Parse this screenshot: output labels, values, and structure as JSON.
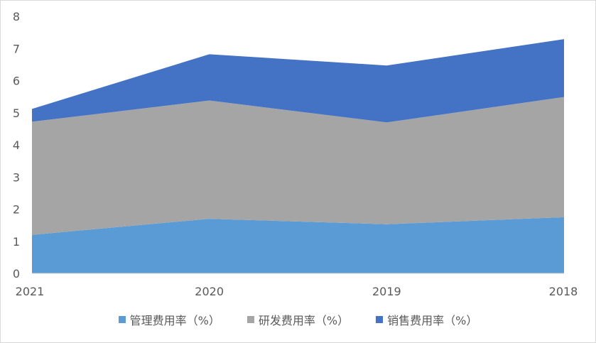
{
  "chart_data": {
    "type": "area",
    "stacked": true,
    "categories": [
      "2021",
      "2020",
      "2019",
      "2018"
    ],
    "series": [
      {
        "name": "管理费用率（%）",
        "values": [
          1.2,
          1.7,
          1.53,
          1.75
        ],
        "color": "#5B9BD5"
      },
      {
        "name": "研发费用率（%）",
        "values": [
          3.52,
          3.68,
          3.17,
          3.74
        ],
        "color": "#A5A5A5"
      },
      {
        "name": "销售费用率（%）",
        "values": [
          0.4,
          1.44,
          1.77,
          1.8
        ],
        "color": "#4472C4"
      }
    ],
    "yticks": [
      "0",
      "1",
      "2",
      "3",
      "4",
      "5",
      "6",
      "7",
      "8"
    ],
    "ylim": [
      0,
      8
    ],
    "grid": false,
    "legend_position": "bottom",
    "title": "",
    "xlabel": "",
    "ylabel": ""
  }
}
